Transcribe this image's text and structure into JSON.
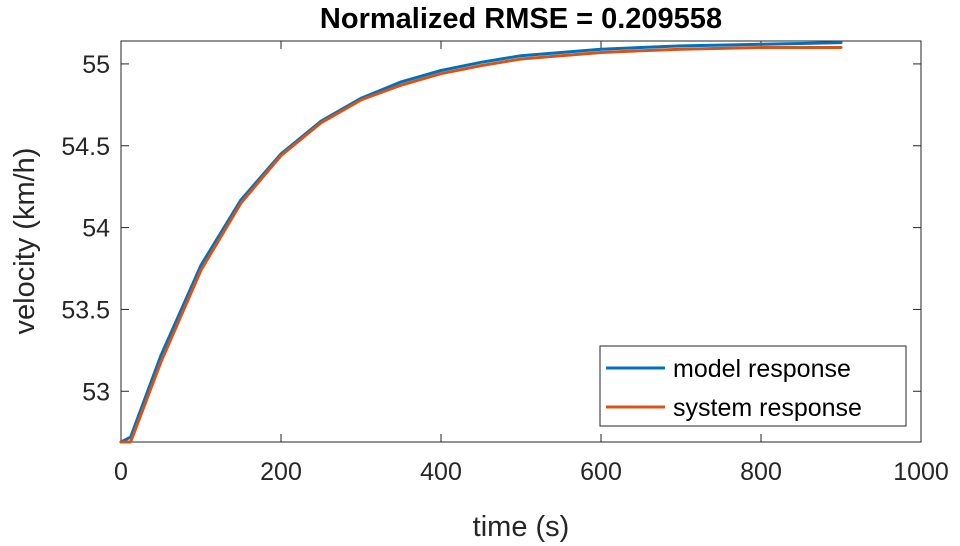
{
  "chart_data": {
    "type": "line",
    "title": "Normalized RMSE = 0.209558",
    "xlabel": "time (s)",
    "ylabel": "velocity (km/h)",
    "xlim": [
      0,
      1000
    ],
    "ylim": [
      52.69,
      55.14
    ],
    "xticks": [
      0,
      200,
      400,
      600,
      800,
      1000
    ],
    "xtick_labels": [
      "0",
      "200",
      "400",
      "600",
      "800",
      "1000"
    ],
    "yticks": [
      53,
      53.5,
      54,
      54.5,
      55
    ],
    "ytick_labels": [
      "53",
      "53.5",
      "54",
      "54.5",
      "55"
    ],
    "grid": false,
    "legend_position": "bottom-right",
    "series": [
      {
        "name": "model response",
        "color": "#0072BD",
        "x": [
          0,
          12,
          50,
          100,
          150,
          200,
          250,
          300,
          350,
          400,
          450,
          500,
          550,
          600,
          650,
          700,
          750,
          800,
          850,
          900
        ],
        "y": [
          52.69,
          52.72,
          53.22,
          53.77,
          54.17,
          54.45,
          54.65,
          54.79,
          54.89,
          54.96,
          55.01,
          55.05,
          55.07,
          55.09,
          55.1,
          55.11,
          55.115,
          55.12,
          55.125,
          55.13
        ]
      },
      {
        "name": "system response",
        "color": "#D95319",
        "x": [
          0,
          12,
          50,
          100,
          150,
          200,
          250,
          300,
          350,
          400,
          450,
          500,
          550,
          600,
          650,
          700,
          750,
          800,
          850,
          900
        ],
        "y": [
          52.69,
          52.69,
          53.18,
          53.74,
          54.15,
          54.44,
          54.64,
          54.78,
          54.87,
          54.94,
          54.99,
          55.03,
          55.05,
          55.07,
          55.08,
          55.09,
          55.095,
          55.1,
          55.1,
          55.1
        ]
      }
    ]
  }
}
